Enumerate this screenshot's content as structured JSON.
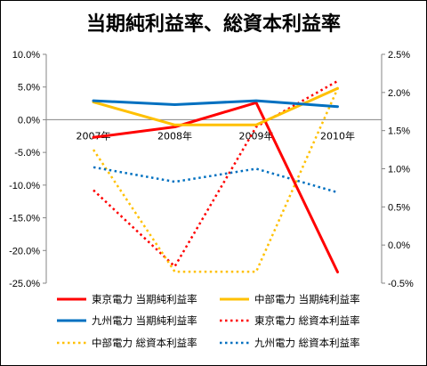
{
  "chart_data": {
    "type": "line",
    "title": "当期純利益率、総資本利益率",
    "categories": [
      "2007年",
      "2008年",
      "2009年",
      "2010年"
    ],
    "y_left": {
      "ylim": [
        -25,
        10
      ],
      "ticks": [
        10,
        5,
        0,
        -5,
        -10,
        -15,
        -20,
        -25
      ],
      "tick_labels": [
        "10.0%",
        "5.0%",
        "0.0%",
        "-5.0%",
        "-10.0%",
        "-15.0%",
        "-20.0%",
        "-25.0%"
      ]
    },
    "y_right": {
      "ylim": [
        -0.5,
        2.5
      ],
      "ticks": [
        2.5,
        2.0,
        1.5,
        1.0,
        0.5,
        0.0,
        -0.5
      ],
      "tick_labels": [
        "2.5%",
        "2.0%",
        "1.5%",
        "1.0%",
        "0.5%",
        "0.0%",
        "-0.5%"
      ]
    },
    "grid": false,
    "legend_position": "bottom",
    "series": [
      {
        "name": "東京電力 当期純利益率",
        "axis": "left",
        "style": "solid",
        "color": "#ff0000",
        "values": [
          -2.7,
          -1.1,
          2.6,
          -23.3
        ]
      },
      {
        "name": "中部電力 当期純利益率",
        "axis": "left",
        "style": "solid",
        "color": "#ffc000",
        "values": [
          2.7,
          -0.8,
          -0.8,
          4.8
        ]
      },
      {
        "name": "九州電力 当期純利益率",
        "axis": "left",
        "style": "solid",
        "color": "#0070c0",
        "values": [
          2.9,
          2.3,
          2.9,
          2.0
        ]
      },
      {
        "name": "東京電力 総資本利益率",
        "axis": "right",
        "style": "dotted",
        "color": "#ff0000",
        "values": [
          0.72,
          -0.28,
          1.55,
          2.15
        ]
      },
      {
        "name": "中部電力 総資本利益率",
        "axis": "right",
        "style": "dotted",
        "color": "#ffc000",
        "values": [
          1.25,
          -0.35,
          -0.35,
          2.05
        ]
      },
      {
        "name": "九州電力 総資本利益率",
        "axis": "right",
        "style": "dotted",
        "color": "#0070c0",
        "values": [
          1.02,
          0.83,
          1.0,
          0.69
        ]
      }
    ]
  }
}
